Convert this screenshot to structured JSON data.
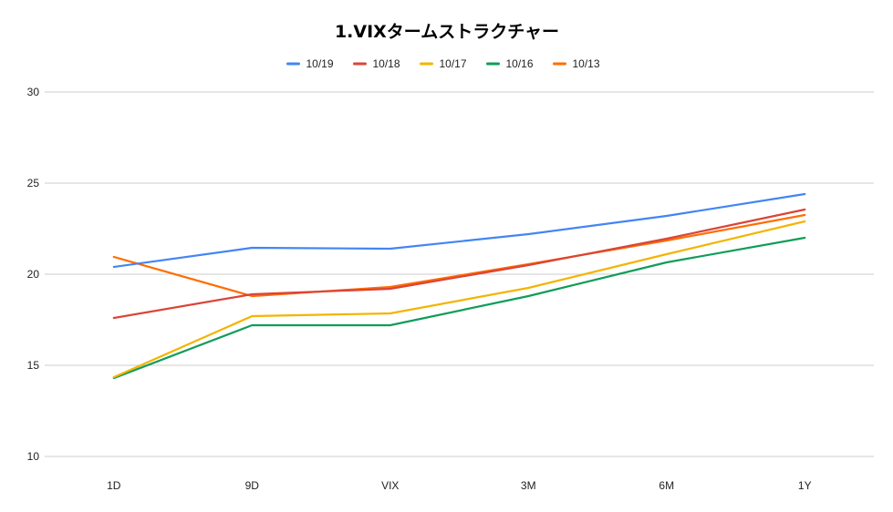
{
  "chart_data": {
    "type": "line",
    "title": "1.VIXタームストラクチャー",
    "xlabel": "",
    "ylabel": "",
    "categories": [
      "1D",
      "9D",
      "VIX",
      "3M",
      "6M",
      "1Y"
    ],
    "ylim": [
      10,
      30
    ],
    "yticks": [
      "10",
      "15",
      "20",
      "25",
      "30"
    ],
    "grid": true,
    "legend_position": "top",
    "series": [
      {
        "name": "10/19",
        "color": "#4285f4",
        "values": [
          20.4,
          21.45,
          21.4,
          22.2,
          23.2,
          24.4
        ]
      },
      {
        "name": "10/18",
        "color": "#db4437",
        "values": [
          17.6,
          18.9,
          19.2,
          20.5,
          21.95,
          23.55
        ]
      },
      {
        "name": "10/17",
        "color": "#f4b400",
        "values": [
          14.35,
          17.7,
          17.85,
          19.25,
          21.1,
          22.9
        ]
      },
      {
        "name": "10/16",
        "color": "#0f9d58",
        "values": [
          14.3,
          17.2,
          17.2,
          18.8,
          20.65,
          22.0
        ]
      },
      {
        "name": "10/13",
        "color": "#ff6d01",
        "values": [
          20.95,
          18.8,
          19.3,
          20.55,
          21.85,
          23.25
        ]
      }
    ]
  }
}
